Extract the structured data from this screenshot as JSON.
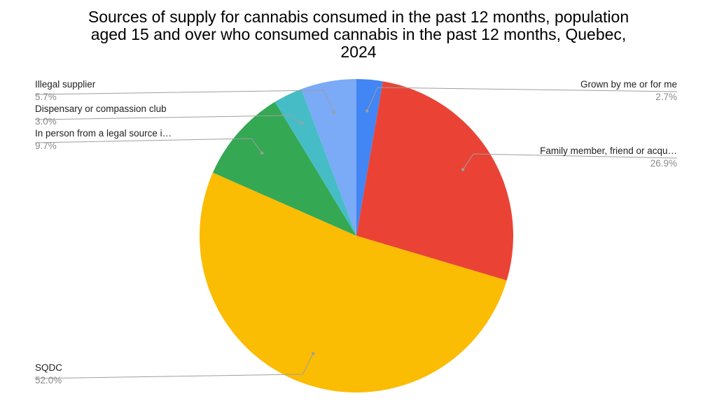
{
  "chart_data": {
    "type": "pie",
    "title": "Sources of supply for cannabis consumed in the past 12 months, population aged 15 and over who consumed cannabis in the past 12 months, Quebec, 2024",
    "legend": "labels beside slices",
    "slices": [
      {
        "label": "Grown by me or for me",
        "value": 2.7,
        "value_label": "2.7%",
        "color": "#4285f4"
      },
      {
        "label": "Family member, friend or acqu…",
        "value": 26.9,
        "value_label": "26.9%",
        "color": "#ea4335"
      },
      {
        "label": "SQDC",
        "value": 52.0,
        "value_label": "52.0%",
        "color": "#fbbc04"
      },
      {
        "label": "In person from a legal source i…",
        "value": 9.7,
        "value_label": "9.7%",
        "color": "#34a853"
      },
      {
        "label": "Dispensary or compassion club",
        "value": 3.0,
        "value_label": "3.0%",
        "color": "#46bdc6"
      },
      {
        "label": "Illegal supplier",
        "value": 5.7,
        "value_label": "5.7%",
        "color": "#7baaf7"
      }
    ]
  }
}
